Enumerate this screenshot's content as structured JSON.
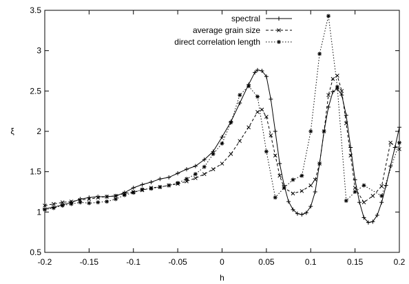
{
  "chart_data": {
    "type": "line",
    "title": "",
    "xlabel": "h",
    "ylabel": "ξ",
    "xlim": [
      -0.2,
      0.2
    ],
    "ylim": [
      0.5,
      3.5
    ],
    "x_ticks": [
      "-0.2",
      "-0.15",
      "-0.1",
      "-0.05",
      "0",
      "0.05",
      "0.1",
      "0.15",
      "0.2"
    ],
    "y_ticks": [
      "0.5",
      "1",
      "1.5",
      "2",
      "2.5",
      "3",
      "3.5"
    ],
    "grid": false,
    "legend_position": "top-center",
    "series": [
      {
        "name": "spectral",
        "line_style": "solid",
        "marker": "plus",
        "points": [
          [
            -0.2,
            1.04
          ],
          [
            -0.19,
            1.06
          ],
          [
            -0.18,
            1.09
          ],
          [
            -0.17,
            1.12
          ],
          [
            -0.16,
            1.16
          ],
          [
            -0.15,
            1.18
          ],
          [
            -0.14,
            1.19
          ],
          [
            -0.13,
            1.19
          ],
          [
            -0.12,
            1.2
          ],
          [
            -0.11,
            1.24
          ],
          [
            -0.1,
            1.3
          ],
          [
            -0.09,
            1.34
          ],
          [
            -0.08,
            1.37
          ],
          [
            -0.07,
            1.41
          ],
          [
            -0.06,
            1.43
          ],
          [
            -0.05,
            1.48
          ],
          [
            -0.04,
            1.53
          ],
          [
            -0.03,
            1.57
          ],
          [
            -0.02,
            1.65
          ],
          [
            -0.01,
            1.75
          ],
          [
            0.0,
            1.93
          ],
          [
            0.01,
            2.12
          ],
          [
            0.02,
            2.35
          ],
          [
            0.03,
            2.58
          ],
          [
            0.037,
            2.73
          ],
          [
            0.04,
            2.76
          ],
          [
            0.045,
            2.75
          ],
          [
            0.05,
            2.68
          ],
          [
            0.055,
            2.4
          ],
          [
            0.06,
            2.0
          ],
          [
            0.065,
            1.6
          ],
          [
            0.07,
            1.33
          ],
          [
            0.075,
            1.13
          ],
          [
            0.08,
            1.03
          ],
          [
            0.085,
            0.98
          ],
          [
            0.09,
            0.97
          ],
          [
            0.095,
            0.99
          ],
          [
            0.1,
            1.07
          ],
          [
            0.105,
            1.25
          ],
          [
            0.11,
            1.6
          ],
          [
            0.115,
            2.0
          ],
          [
            0.12,
            2.3
          ],
          [
            0.125,
            2.49
          ],
          [
            0.13,
            2.53
          ],
          [
            0.135,
            2.45
          ],
          [
            0.14,
            2.2
          ],
          [
            0.145,
            1.8
          ],
          [
            0.15,
            1.4
          ],
          [
            0.155,
            1.12
          ],
          [
            0.16,
            0.93
          ],
          [
            0.165,
            0.87
          ],
          [
            0.17,
            0.88
          ],
          [
            0.175,
            0.96
          ],
          [
            0.18,
            1.12
          ],
          [
            0.185,
            1.33
          ],
          [
            0.19,
            1.57
          ],
          [
            0.195,
            1.8
          ],
          [
            0.2,
            2.05
          ]
        ]
      },
      {
        "name": "average grain size",
        "line_style": "dashed",
        "marker": "cross",
        "points": [
          [
            -0.2,
            1.08
          ],
          [
            -0.19,
            1.1
          ],
          [
            -0.18,
            1.12
          ],
          [
            -0.17,
            1.13
          ],
          [
            -0.16,
            1.15
          ],
          [
            -0.15,
            1.16
          ],
          [
            -0.14,
            1.18
          ],
          [
            -0.13,
            1.19
          ],
          [
            -0.12,
            1.2
          ],
          [
            -0.11,
            1.23
          ],
          [
            -0.1,
            1.25
          ],
          [
            -0.09,
            1.27
          ],
          [
            -0.08,
            1.3
          ],
          [
            -0.07,
            1.31
          ],
          [
            -0.06,
            1.33
          ],
          [
            -0.05,
            1.35
          ],
          [
            -0.04,
            1.38
          ],
          [
            -0.03,
            1.42
          ],
          [
            -0.02,
            1.47
          ],
          [
            -0.01,
            1.53
          ],
          [
            0.0,
            1.6
          ],
          [
            0.01,
            1.72
          ],
          [
            0.02,
            1.88
          ],
          [
            0.03,
            2.05
          ],
          [
            0.04,
            2.24
          ],
          [
            0.045,
            2.27
          ],
          [
            0.05,
            2.18
          ],
          [
            0.055,
            1.95
          ],
          [
            0.06,
            1.7
          ],
          [
            0.065,
            1.45
          ],
          [
            0.07,
            1.3
          ],
          [
            0.08,
            1.23
          ],
          [
            0.09,
            1.26
          ],
          [
            0.1,
            1.33
          ],
          [
            0.105,
            1.4
          ],
          [
            0.11,
            1.6
          ],
          [
            0.115,
            2.0
          ],
          [
            0.12,
            2.45
          ],
          [
            0.125,
            2.65
          ],
          [
            0.13,
            2.69
          ],
          [
            0.135,
            2.5
          ],
          [
            0.14,
            2.1
          ],
          [
            0.145,
            1.7
          ],
          [
            0.15,
            1.3
          ],
          [
            0.16,
            1.12
          ],
          [
            0.17,
            1.2
          ],
          [
            0.18,
            1.32
          ],
          [
            0.19,
            1.86
          ],
          [
            0.2,
            1.78
          ]
        ]
      },
      {
        "name": "direct correlation length",
        "line_style": "dotted",
        "marker": "star",
        "points": [
          [
            -0.2,
            1.03
          ],
          [
            -0.19,
            1.05
          ],
          [
            -0.18,
            1.08
          ],
          [
            -0.17,
            1.1
          ],
          [
            -0.16,
            1.12
          ],
          [
            -0.15,
            1.11
          ],
          [
            -0.14,
            1.12
          ],
          [
            -0.13,
            1.13
          ],
          [
            -0.12,
            1.16
          ],
          [
            -0.11,
            1.21
          ],
          [
            -0.1,
            1.24
          ],
          [
            -0.09,
            1.28
          ],
          [
            -0.08,
            1.29
          ],
          [
            -0.07,
            1.31
          ],
          [
            -0.06,
            1.33
          ],
          [
            -0.05,
            1.36
          ],
          [
            -0.04,
            1.41
          ],
          [
            -0.03,
            1.47
          ],
          [
            -0.02,
            1.56
          ],
          [
            -0.01,
            1.72
          ],
          [
            0.0,
            1.85
          ],
          [
            0.01,
            2.11
          ],
          [
            0.02,
            2.45
          ],
          [
            0.03,
            2.56
          ],
          [
            0.04,
            2.43
          ],
          [
            0.05,
            1.75
          ],
          [
            0.06,
            1.18
          ],
          [
            0.07,
            1.3
          ],
          [
            0.08,
            1.4
          ],
          [
            0.09,
            1.45
          ],
          [
            0.1,
            2.0
          ],
          [
            0.11,
            2.96
          ],
          [
            0.12,
            3.43
          ],
          [
            0.13,
            2.55
          ],
          [
            0.14,
            1.14
          ],
          [
            0.15,
            1.25
          ],
          [
            0.16,
            1.33
          ],
          [
            0.18,
            1.2
          ],
          [
            0.2,
            1.86
          ]
        ]
      }
    ]
  }
}
